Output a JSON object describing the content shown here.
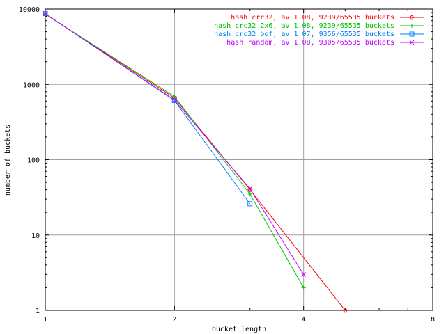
{
  "chart_data": {
    "type": "line",
    "xlabel": "bucket length",
    "ylabel": "number of buckets",
    "xscale": "log",
    "yscale": "log",
    "xlim": [
      1,
      8
    ],
    "ylim": [
      1,
      10000
    ],
    "xticks": [
      1,
      2,
      4,
      8
    ],
    "xtick_labels": [
      "1",
      "2",
      "4",
      "8"
    ],
    "yticks": [
      1,
      10,
      100,
      1000,
      10000
    ],
    "ytick_labels": [
      "1",
      "10",
      "100",
      "1000",
      "10000"
    ],
    "grid": true,
    "legend_position": "top-right",
    "series": [
      {
        "name": "hash crc32, av 1.08, 9239/65535 buckets",
        "color": "#ff0000",
        "marker": "diamond",
        "x": [
          1,
          2,
          3,
          5
        ],
        "y": [
          8550,
          660,
          40,
          1
        ]
      },
      {
        "name": "hash crc32 2x6, av 1.08, 9239/65535 buckets",
        "color": "#00c000",
        "marker": "plus",
        "x": [
          1,
          2,
          3,
          4
        ],
        "y": [
          8550,
          690,
          35,
          2
        ]
      },
      {
        "name": "hash crc32 bof, av 1.07, 9356/65535 buckets",
        "color": "#0080ff",
        "marker": "square",
        "x": [
          1,
          2,
          3
        ],
        "y": [
          8700,
          610,
          26
        ]
      },
      {
        "name": "hash random, av 1.08, 9305/65535 buckets",
        "color": "#c000ff",
        "marker": "cross",
        "x": [
          1,
          2,
          3,
          4
        ],
        "y": [
          8650,
          620,
          41,
          3
        ]
      }
    ]
  }
}
